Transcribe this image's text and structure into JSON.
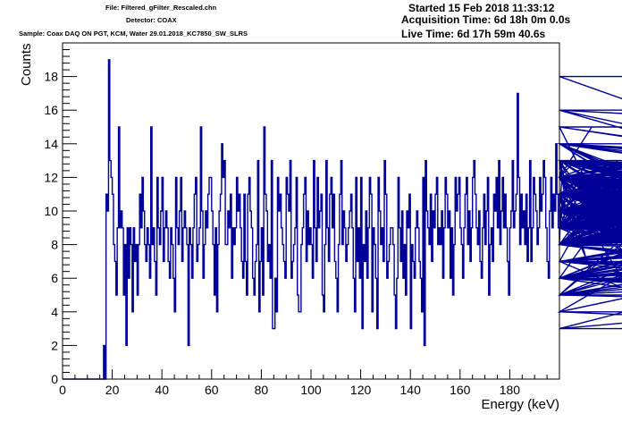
{
  "header": {
    "file": "File: Filtered_gFilter_Rescaled.chn",
    "detector": "Detector: COAX",
    "sample": "Sample: Coax DAQ ON PGT, KCM, Water 29.01.2018_KC7850_SW_SLRS",
    "started": "Started 15 Feb 2018 11:33:12",
    "acquisition_time": "Acquisition Time: 6d 18h 0m 0.0s",
    "live_time": "Live Time: 6d 17h 59m 40.6s"
  },
  "chart_data": {
    "type": "histogram",
    "title": "",
    "xlabel": "Energy (keV)",
    "ylabel": "Counts",
    "xlim": [
      0,
      200
    ],
    "ylim": [
      0,
      20
    ],
    "x_ticks": [
      0,
      20,
      40,
      60,
      80,
      100,
      120,
      140,
      160,
      180
    ],
    "y_ticks": [
      0,
      2,
      4,
      6,
      8,
      10,
      12,
      14,
      16,
      18
    ],
    "bin_width": 0.5,
    "x_start": 16.5,
    "line_color": "#000099",
    "values": [
      2,
      0,
      11,
      10,
      19,
      13,
      12,
      11,
      8,
      7,
      5,
      9,
      15,
      9,
      10,
      9,
      5,
      8,
      2,
      9,
      6,
      9,
      8,
      4,
      9,
      7,
      8,
      5,
      8,
      11,
      9,
      12,
      10,
      8,
      7,
      9,
      8,
      6,
      15,
      8,
      9,
      7,
      5,
      12,
      9,
      8,
      10,
      12,
      7,
      9,
      10,
      9,
      7,
      6,
      9,
      8,
      6,
      4,
      12,
      9,
      8,
      10,
      12,
      7,
      9,
      10,
      9,
      8,
      2,
      9,
      8,
      6,
      9,
      11,
      12,
      7,
      8,
      9,
      15,
      10,
      6,
      8,
      10,
      9,
      11,
      12,
      12,
      10,
      8,
      5,
      9,
      4,
      8,
      10,
      11,
      14,
      12,
      13,
      8,
      8,
      10,
      9,
      11,
      6,
      9,
      8,
      9,
      12,
      10,
      11,
      9,
      7,
      6,
      11,
      7,
      5,
      11,
      12,
      10,
      9,
      6,
      5,
      7,
      8,
      13,
      4,
      7,
      9,
      5,
      15,
      11,
      10,
      7,
      8,
      6,
      13,
      3,
      3,
      6,
      4,
      12,
      10,
      11,
      9,
      8,
      7,
      6,
      12,
      11,
      10,
      13,
      6,
      7,
      8,
      9,
      12,
      5,
      4,
      4,
      8,
      9,
      11,
      12,
      7,
      10,
      8,
      9,
      8,
      6,
      13,
      9,
      7,
      12,
      9,
      10,
      11,
      5,
      4,
      8,
      13,
      9,
      7,
      11,
      12,
      9,
      11,
      7,
      6,
      4,
      8,
      11,
      13,
      8,
      10,
      9,
      7,
      8,
      9,
      10,
      11,
      9,
      6,
      4,
      12,
      7,
      9,
      6,
      12,
      3,
      8,
      7,
      10,
      6,
      9,
      12,
      11,
      4,
      9,
      8,
      6,
      3,
      12,
      10,
      8,
      9,
      7,
      13,
      11,
      6,
      7,
      8,
      9,
      9,
      8,
      5,
      3,
      6,
      12,
      9,
      7,
      10,
      6,
      8,
      5,
      10,
      9,
      11,
      3,
      8,
      7,
      6,
      9,
      10,
      9,
      7,
      6,
      4,
      12,
      2,
      13,
      10,
      9,
      8,
      11,
      7,
      10,
      9,
      11,
      12,
      8,
      9,
      8,
      10,
      6,
      9,
      12,
      11,
      9,
      10,
      6,
      9,
      5,
      8,
      12,
      10,
      11,
      12,
      9,
      8,
      6,
      9,
      11,
      12,
      8,
      10,
      7,
      9,
      12,
      13,
      11,
      9,
      8,
      10,
      7,
      6,
      9,
      11,
      8,
      10,
      12,
      5,
      8,
      9,
      7,
      11,
      10,
      12,
      9,
      13,
      8,
      10,
      12,
      9,
      11,
      9,
      7,
      5,
      9,
      10,
      13,
      9,
      10,
      11,
      17,
      12,
      8,
      11,
      9,
      10,
      8,
      11,
      7,
      9,
      13,
      7,
      9,
      12,
      11,
      10,
      8,
      9,
      12,
      10,
      11,
      13,
      12,
      9,
      7,
      6,
      10,
      12,
      9,
      11,
      10,
      14,
      11,
      9,
      8,
      10,
      12,
      13,
      11,
      10,
      9,
      12,
      11,
      8,
      9,
      10,
      12,
      13,
      11,
      9,
      10,
      12,
      11,
      12,
      9,
      13,
      7,
      10,
      9,
      12,
      15,
      11,
      6,
      9,
      8,
      10,
      12,
      11,
      9,
      10,
      12,
      13,
      9,
      12,
      11,
      8,
      10,
      9,
      12,
      11,
      10,
      13,
      12,
      9,
      10,
      11,
      12,
      8,
      9,
      11,
      10,
      8,
      12,
      5,
      9,
      8,
      9,
      10,
      7,
      5,
      9,
      11,
      10,
      12,
      6,
      8,
      10,
      9,
      12,
      10,
      11,
      7,
      8,
      12,
      13,
      9,
      10,
      7,
      8,
      11,
      9,
      14,
      10,
      8,
      12,
      13,
      9,
      10,
      11,
      9,
      12,
      6,
      8,
      13,
      10,
      9,
      11,
      12,
      8,
      14,
      9,
      10,
      12,
      11,
      9,
      13,
      10,
      12,
      8,
      9,
      14,
      10,
      12,
      11,
      8,
      12,
      10,
      9,
      13,
      11,
      12,
      9,
      14,
      10,
      12,
      11,
      13,
      12,
      11,
      14,
      9,
      12,
      10,
      13,
      11,
      9,
      12,
      14,
      10,
      9,
      13,
      12,
      8,
      12,
      11,
      10,
      12,
      13,
      11,
      9,
      12,
      10,
      8,
      11,
      9,
      12,
      10,
      12,
      11,
      10,
      9,
      7,
      8,
      13,
      10,
      12,
      11,
      9,
      10,
      12,
      8,
      11,
      9,
      12,
      10,
      13,
      11,
      9,
      10,
      12,
      6,
      4,
      12,
      10,
      11,
      9,
      12,
      8,
      10,
      11,
      9,
      6,
      5,
      11,
      10,
      8,
      6,
      12,
      9,
      8,
      10,
      11,
      12,
      9,
      10,
      12,
      13,
      9,
      10,
      8,
      11,
      12,
      9,
      10,
      13,
      12,
      9,
      10,
      11,
      8,
      12,
      9,
      10,
      13,
      12,
      11,
      9,
      12,
      10,
      8,
      11,
      9,
      12,
      10,
      12,
      11,
      13,
      6,
      10,
      8,
      13,
      11,
      12,
      9,
      10,
      8,
      6,
      7,
      5,
      10,
      8,
      12,
      11,
      10,
      12,
      9,
      8,
      11,
      10,
      12,
      9,
      18,
      11,
      10,
      15,
      12,
      8,
      14,
      11,
      9,
      10,
      8,
      6,
      10,
      11,
      12,
      9,
      8,
      6,
      9,
      12,
      10,
      11,
      9,
      10,
      13,
      11,
      12,
      10,
      9,
      6,
      5,
      12,
      8,
      10,
      11,
      9,
      12,
      7,
      9,
      10,
      13,
      11,
      8,
      6,
      9,
      10,
      4,
      3,
      9,
      11,
      10,
      12,
      9,
      10,
      13,
      11,
      9,
      8,
      10,
      12,
      16,
      9,
      10,
      13,
      11,
      7,
      9,
      12,
      10,
      11,
      9,
      12,
      8,
      9,
      11,
      10,
      12,
      9,
      10,
      13,
      11,
      8,
      10,
      11,
      9,
      12,
      6,
      10,
      12,
      13,
      11,
      8,
      9,
      10,
      12,
      11,
      9,
      12,
      14,
      10,
      6,
      13,
      11,
      10,
      12,
      14,
      11,
      9,
      8,
      12,
      13,
      10,
      15,
      11,
      8,
      16,
      10,
      9,
      12,
      13,
      11,
      8,
      10,
      14,
      12,
      9,
      13,
      11,
      12,
      10,
      11,
      9,
      12,
      13,
      10,
      12,
      11,
      14,
      12,
      10,
      9,
      13,
      11,
      12,
      6,
      8,
      10,
      11,
      9,
      12,
      10,
      13,
      11,
      12,
      9,
      10,
      11,
      13,
      12,
      10,
      6,
      9,
      11,
      12,
      10,
      8,
      11,
      10,
      9,
      7,
      5,
      9,
      8,
      12,
      11,
      10,
      9,
      7,
      5,
      8,
      4,
      11,
      12,
      9,
      10,
      7,
      6,
      8,
      9,
      11,
      10,
      12,
      3,
      6,
      9,
      8,
      10,
      12,
      11,
      7,
      9,
      10,
      12,
      11,
      9,
      8,
      10,
      13,
      9,
      10,
      12,
      11,
      9,
      7,
      5,
      11,
      8,
      10,
      12,
      9,
      12,
      11,
      13,
      10,
      7,
      12,
      11,
      9,
      10,
      12,
      6,
      5,
      11,
      8,
      12,
      10,
      14,
      9,
      10,
      12,
      11,
      13,
      12,
      10,
      9,
      14,
      11,
      16,
      14,
      12,
      7,
      9,
      13,
      11,
      10,
      8,
      12,
      9,
      11,
      10,
      7,
      9,
      12,
      10,
      11,
      9,
      12,
      8,
      10,
      9,
      6,
      8,
      7,
      6,
      5,
      10,
      8,
      7,
      6,
      9,
      8,
      7,
      6,
      5,
      7,
      6,
      8,
      7,
      6,
      5,
      4
    ]
  }
}
